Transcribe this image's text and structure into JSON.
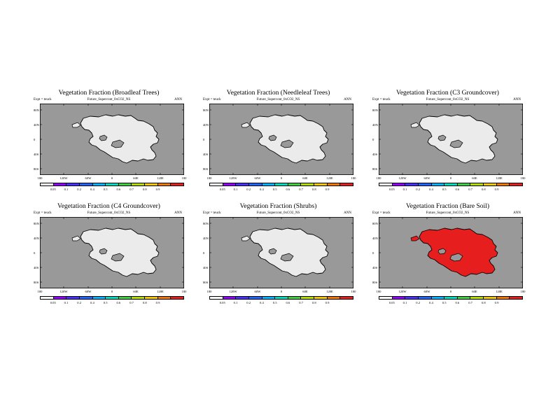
{
  "expt_label": "Expt = teuck",
  "run_name": "Future_Supercont_0xCO2_NS",
  "period": "ANN",
  "lat_labels": [
    "80N",
    "40N",
    "0",
    "40S",
    "80S"
  ],
  "lon_labels": [
    "180",
    "120W",
    "60W",
    "0",
    "60E",
    "120E",
    "180"
  ],
  "colorbar": {
    "labels": [
      "0.05",
      "0.1",
      "0.2",
      "0.4",
      "0.5",
      "0.6",
      "0.7",
      "0.8",
      "0.9"
    ],
    "colors": [
      "#ffffff",
      "#9600ff",
      "#4b2fff",
      "#1f66ff",
      "#00b4ff",
      "#00dcbe",
      "#3cd23c",
      "#b4dc00",
      "#f0c800",
      "#f07800",
      "#e61e1e"
    ]
  },
  "ocean_color": "#999999",
  "panels": [
    {
      "title": "Vegetation Fraction (Broadleaf Trees)",
      "land_fill": "#ebebeb"
    },
    {
      "title": "Vegetation Fraction (Needleleaf Trees)",
      "land_fill": "#ebebeb"
    },
    {
      "title": "Vegetation Fraction (C3 Groundcover)",
      "land_fill": "#ebebeb"
    },
    {
      "title": "Vegetation Fraction (C4 Groundcover)",
      "land_fill": "#ebebeb"
    },
    {
      "title": "Vegetation Fraction (Shrubs)",
      "land_fill": "#ebebeb"
    },
    {
      "title": "Vegetation Fraction (Bare Soil)",
      "land_fill": "#e61e1e"
    }
  ]
}
